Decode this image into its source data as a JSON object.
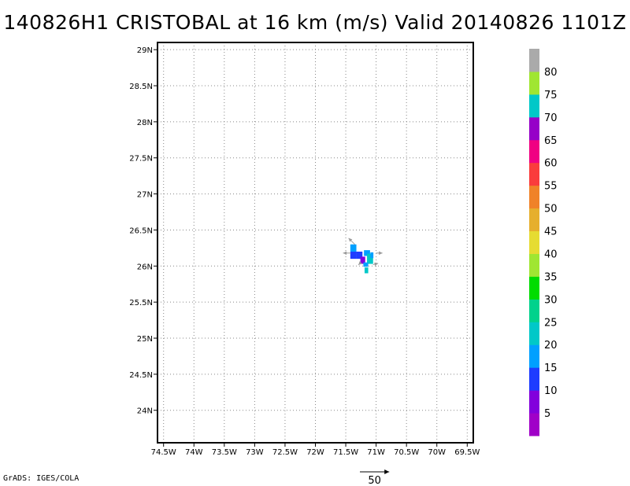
{
  "title": "140826H1 CRISTOBAL at 16 km (m/s) Valid 20140826 1101Z",
  "credit": "GrADS: IGES/COLA",
  "chart_data": {
    "type": "heatmap",
    "title": "140826H1 CRISTOBAL at 16 km (m/s) Valid 20140826 1101Z",
    "xlim": [
      -74.6,
      -69.4
    ],
    "ylim": [
      23.55,
      29.1
    ],
    "grid": true,
    "x_ticks": [
      -74.5,
      -74,
      -73.5,
      -73,
      -72.5,
      -72,
      -71.5,
      -71,
      -70.5,
      -70,
      -69.5
    ],
    "x_tick_labels": [
      "74.5W",
      "74W",
      "73.5W",
      "73W",
      "72.5W",
      "72W",
      "71.5W",
      "71W",
      "70.5W",
      "70W",
      "69.5W"
    ],
    "y_ticks": [
      24,
      24.5,
      25,
      25.5,
      26,
      26.5,
      27,
      27.5,
      28,
      28.5,
      29
    ],
    "y_tick_labels": [
      "24N",
      "24.5N",
      "25N",
      "25.5N",
      "26N",
      "26.5N",
      "27N",
      "27.5N",
      "28N",
      "28.5N",
      "29N"
    ],
    "colorbar": {
      "labels": [
        "5",
        "10",
        "15",
        "20",
        "25",
        "30",
        "35",
        "40",
        "45",
        "50",
        "55",
        "60",
        "65",
        "70",
        "75",
        "80"
      ],
      "colors": [
        "#a000c8",
        "#8200dc",
        "#1e3cff",
        "#00a0ff",
        "#00c8c8",
        "#00d28c",
        "#00dc00",
        "#a0e632",
        "#e6dc32",
        "#e6af2d",
        "#f08228",
        "#fa3c3c",
        "#f00082",
        "#9600c8",
        "#00c8c8",
        "#a0e632",
        "#aaaaaa"
      ]
    },
    "cells": [
      {
        "lon": -71.375,
        "lat": 26.25,
        "w": 0.1,
        "h": 0.1,
        "value": 18
      },
      {
        "lon": -71.375,
        "lat": 26.15,
        "w": 0.1,
        "h": 0.1,
        "value": 12
      },
      {
        "lon": -71.275,
        "lat": 26.15,
        "w": 0.1,
        "h": 0.1,
        "value": 10
      },
      {
        "lon": -71.22,
        "lat": 26.08,
        "w": 0.08,
        "h": 0.1,
        "value": 8
      },
      {
        "lon": -71.15,
        "lat": 26.18,
        "w": 0.1,
        "h": 0.08,
        "value": 16
      },
      {
        "lon": -71.1,
        "lat": 26.1,
        "w": 0.1,
        "h": 0.14,
        "value": 21
      },
      {
        "lon": -71.17,
        "lat": 26.02,
        "w": 0.08,
        "h": 0.06,
        "value": 17
      },
      {
        "lon": -71.16,
        "lat": 25.94,
        "w": 0.06,
        "h": 0.08,
        "value": 22
      },
      {
        "lon": -71.07,
        "lat": 26.15,
        "w": 0.05,
        "h": 0.08,
        "value": 19
      }
    ],
    "vectors": [
      {
        "lon": -71.35,
        "lat": 26.3,
        "u": -10,
        "v": 10
      },
      {
        "lon": -71.42,
        "lat": 26.18,
        "u": -12,
        "v": 0
      },
      {
        "lon": -71.0,
        "lat": 26.18,
        "u": 10,
        "v": 0
      },
      {
        "lon": -71.05,
        "lat": 26.02,
        "u": 8,
        "v": 2
      },
      {
        "lon": -71.25,
        "lat": 26.05,
        "u": -4,
        "v": -4
      }
    ],
    "reference_vector": {
      "label": "50",
      "magnitude": 50
    }
  }
}
